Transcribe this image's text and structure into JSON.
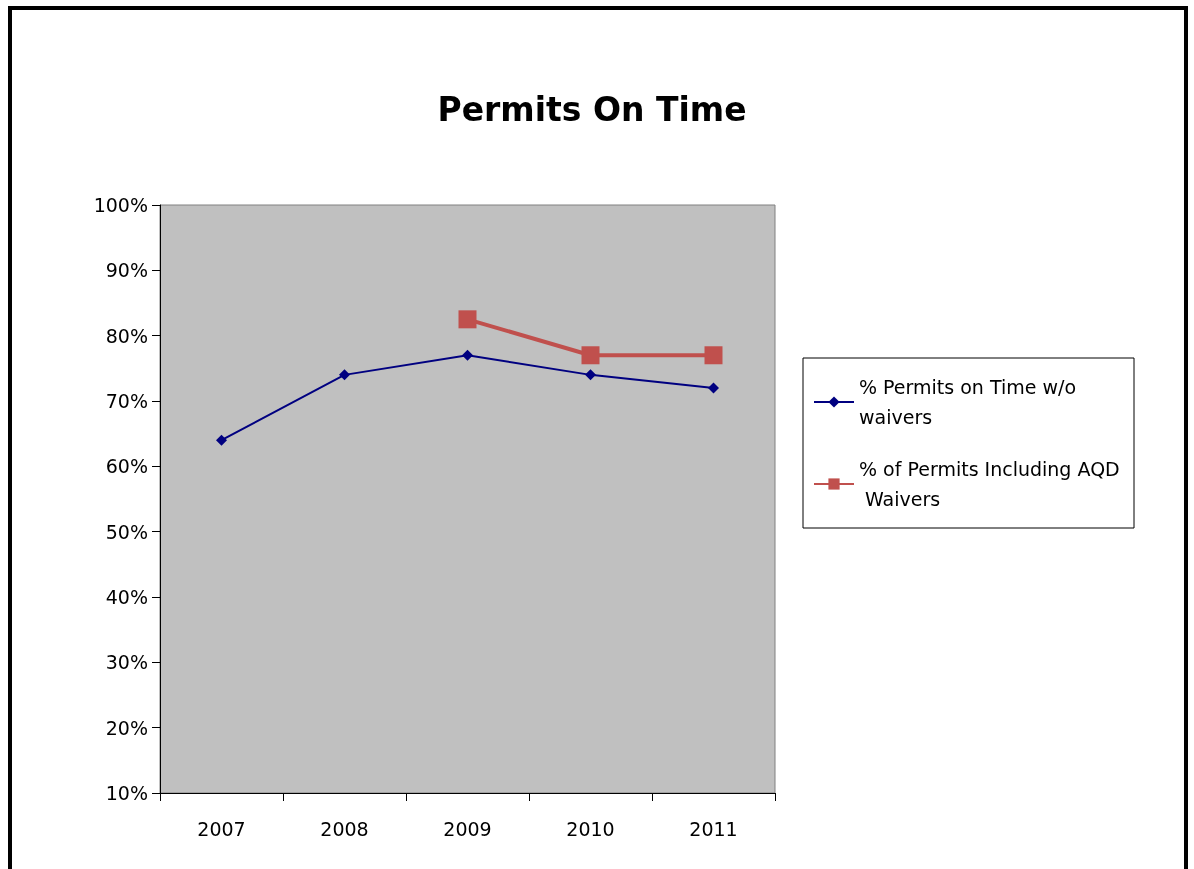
{
  "chart_data": {
    "type": "line",
    "title": "Permits On Time",
    "categories": [
      "2007",
      "2008",
      "2009",
      "2010",
      "2011"
    ],
    "series": [
      {
        "name": "% Permits on Time w/o waivers",
        "color": "#000080",
        "marker": "diamond",
        "values": [
          64,
          74,
          77,
          74,
          72
        ]
      },
      {
        "name": "% of Permits Including AQD Waivers",
        "color": "#c0504d",
        "marker": "square",
        "values": [
          null,
          null,
          82.5,
          77,
          77
        ]
      }
    ],
    "ylim": [
      10,
      100
    ],
    "yticks": [
      {
        "value": 10,
        "label": "10%"
      },
      {
        "value": 20,
        "label": "20%"
      },
      {
        "value": 30,
        "label": "30%"
      },
      {
        "value": 40,
        "label": "40%"
      },
      {
        "value": 50,
        "label": "50%"
      },
      {
        "value": 60,
        "label": "60%"
      },
      {
        "value": 70,
        "label": "70%"
      },
      {
        "value": 80,
        "label": "80%"
      },
      {
        "value": 90,
        "label": "90%"
      },
      {
        "value": 100,
        "label": "100%"
      }
    ],
    "grid": false,
    "legend": "right"
  }
}
